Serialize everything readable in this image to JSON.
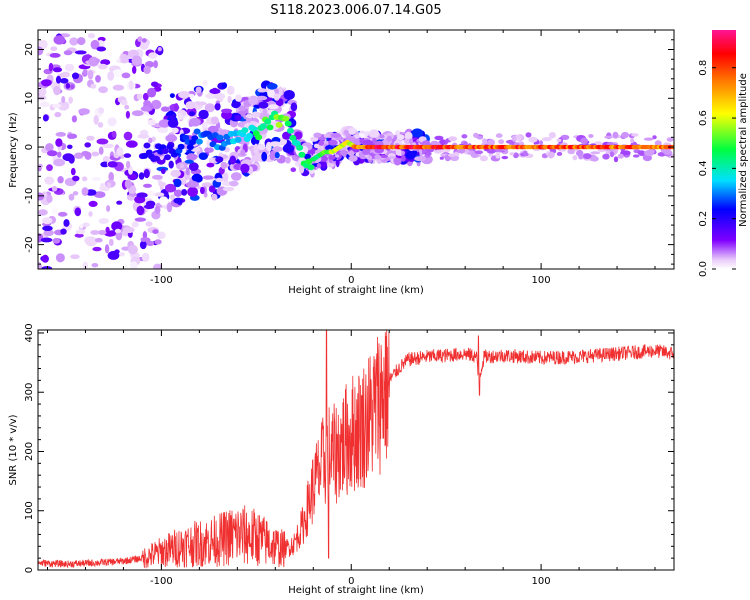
{
  "figure_title": "S118.2023.006.07.14.G05",
  "chart_data": [
    {
      "type": "heatmap",
      "title": "",
      "xlabel": "Height of straight line (km)",
      "ylabel": "Frequency (Hz)",
      "xlim": [
        -165,
        170
      ],
      "ylim": [
        -25,
        24
      ],
      "x_ticks": [
        -100,
        0,
        100
      ],
      "y_ticks": [
        -20,
        -10,
        0,
        10,
        20
      ],
      "colorbar": {
        "label": "Normalized spectral amplitude",
        "range": [
          0,
          0.95
        ],
        "ticks": [
          0.0,
          0.2,
          0.4,
          0.6,
          0.8
        ],
        "tick_labels": [
          "0.0",
          "0.2",
          "0.4",
          "0.6",
          "0.8"
        ],
        "colors": [
          "#f4d8fc",
          "#8000ff",
          "#0000ff",
          "#00e0ff",
          "#00ff40",
          "#ffff00",
          "#ff8000",
          "#ff0000",
          "#ff1493"
        ]
      },
      "ridge": {
        "description": "dominant frequency trace",
        "x": [
          -100,
          -90,
          -80,
          -70,
          -60,
          -50,
          -45,
          -40,
          -35,
          -30,
          -26,
          -22,
          -18,
          -14,
          -10,
          -6,
          -2,
          2,
          10,
          20,
          50,
          100,
          150,
          170
        ],
        "y": [
          -1,
          0,
          2,
          1,
          2,
          3,
          5,
          6,
          5,
          2,
          -2,
          -3,
          -2,
          -1,
          -1,
          0,
          1,
          0,
          0,
          0,
          0,
          0,
          0,
          0
        ],
        "amplitude": [
          0.2,
          0.25,
          0.3,
          0.3,
          0.35,
          0.45,
          0.5,
          0.5,
          0.55,
          0.45,
          0.45,
          0.5,
          0.5,
          0.5,
          0.55,
          0.6,
          0.6,
          0.7,
          0.85,
          0.85,
          0.8,
          0.8,
          0.8,
          0.8
        ]
      },
      "grid": false
    },
    {
      "type": "line",
      "title": "",
      "xlabel": "Height of straight line (km)",
      "ylabel": "SNR (10 * v/v)",
      "xlim": [
        -165,
        170
      ],
      "ylim": [
        0,
        405
      ],
      "x_ticks": [
        -100,
        0,
        100
      ],
      "y_ticks": [
        0,
        100,
        200,
        300,
        400
      ],
      "series": [
        {
          "color": "#f03030",
          "x": [
            -165,
            -150,
            -135,
            -120,
            -110,
            -100,
            -90,
            -80,
            -70,
            -60,
            -50,
            -40,
            -35,
            -30,
            -25,
            -20,
            -15,
            -12,
            -10,
            -5,
            0,
            5,
            10,
            15,
            20,
            25,
            30,
            40,
            50,
            60,
            66,
            67,
            70,
            80,
            100,
            120,
            140,
            160,
            170
          ],
          "y": [
            12,
            10,
            12,
            15,
            20,
            30,
            40,
            45,
            50,
            60,
            55,
            40,
            35,
            45,
            80,
            140,
            180,
            200,
            190,
            210,
            230,
            240,
            260,
            290,
            320,
            340,
            355,
            360,
            362,
            365,
            360,
            320,
            360,
            362,
            358,
            360,
            365,
            370,
            365
          ]
        }
      ],
      "spikes": [
        {
          "x": -13,
          "y": 405
        },
        {
          "x": -12,
          "y": 20
        },
        {
          "x": 67,
          "y": 395
        },
        {
          "x": 67.5,
          "y": 295
        }
      ],
      "grid": false
    }
  ]
}
